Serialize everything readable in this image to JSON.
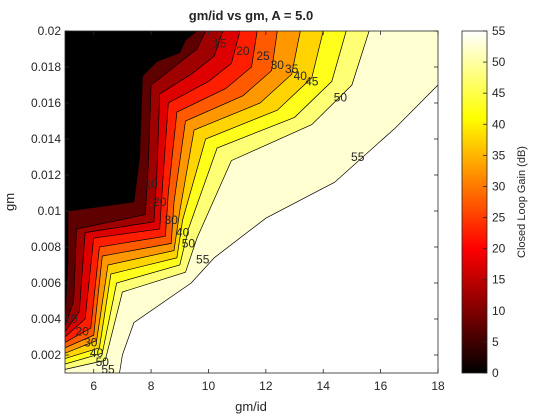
{
  "chart_data": {
    "type": "contourf",
    "title": "gm/id vs gm, A = 5.0",
    "xlabel": "gm/id",
    "ylabel": "gm",
    "colorbar_label": "Closed Loop Gain (dB)",
    "colormap": "hot",
    "xlim": [
      5,
      18
    ],
    "ylim": [
      0.001,
      0.02
    ],
    "clim": [
      0,
      55
    ],
    "x_ticks": [
      6,
      8,
      10,
      12,
      14,
      16,
      18
    ],
    "y_ticks": [
      0.002,
      0.004,
      0.006,
      0.008,
      0.01,
      0.012,
      0.014,
      0.016,
      0.018,
      0.02
    ],
    "y_tick_labels": [
      "0.002",
      "0.004",
      "0.006",
      "0.008",
      "0.01",
      "0.012",
      "0.014",
      "0.016",
      "0.018",
      "0.02"
    ],
    "colorbar_ticks": [
      0,
      5,
      10,
      15,
      20,
      25,
      30,
      35,
      40,
      45,
      50,
      55
    ],
    "levels": [
      5,
      10,
      15,
      20,
      25,
      30,
      35,
      40,
      45,
      50,
      55
    ],
    "contours": [
      {
        "level": 5,
        "points": [
          [
            5.0,
            0.004
          ],
          [
            5.1,
            0.007
          ],
          [
            5.1,
            0.01
          ],
          [
            7.4,
            0.0105
          ],
          [
            7.6,
            0.013
          ],
          [
            7.7,
            0.0175
          ],
          [
            8.2,
            0.0183
          ],
          [
            9.0,
            0.0188
          ],
          [
            9.2,
            0.0195
          ],
          [
            9.6,
            0.02
          ]
        ]
      },
      {
        "level": 10,
        "points": [
          [
            5.0,
            0.0036
          ],
          [
            5.3,
            0.005
          ],
          [
            5.4,
            0.009
          ],
          [
            7.8,
            0.0098
          ],
          [
            7.9,
            0.0125
          ],
          [
            8.0,
            0.017
          ],
          [
            8.8,
            0.018
          ],
          [
            9.6,
            0.019
          ],
          [
            9.9,
            0.02
          ]
        ]
      },
      {
        "level": 15,
        "points": [
          [
            5.0,
            0.0033
          ],
          [
            5.5,
            0.0044
          ],
          [
            5.7,
            0.0088
          ],
          [
            8.1,
            0.0094
          ],
          [
            8.2,
            0.012
          ],
          [
            8.3,
            0.0165
          ],
          [
            9.4,
            0.0176
          ],
          [
            10.2,
            0.0186
          ],
          [
            10.5,
            0.02
          ]
        ]
      },
      {
        "level": 20,
        "points": [
          [
            5.0,
            0.003
          ],
          [
            5.7,
            0.004
          ],
          [
            6.0,
            0.0085
          ],
          [
            8.3,
            0.009
          ],
          [
            8.4,
            0.0115
          ],
          [
            8.6,
            0.016
          ],
          [
            10.0,
            0.0172
          ],
          [
            10.8,
            0.0182
          ],
          [
            11.1,
            0.02
          ]
        ]
      },
      {
        "level": 25,
        "points": [
          [
            5.0,
            0.0027
          ],
          [
            5.9,
            0.0035
          ],
          [
            6.2,
            0.008
          ],
          [
            8.5,
            0.0086
          ],
          [
            8.6,
            0.011
          ],
          [
            8.9,
            0.0155
          ],
          [
            10.6,
            0.0168
          ],
          [
            11.5,
            0.018
          ],
          [
            11.7,
            0.02
          ]
        ]
      },
      {
        "level": 30,
        "points": [
          [
            5.0,
            0.0024
          ],
          [
            6.0,
            0.0031
          ],
          [
            6.3,
            0.0075
          ],
          [
            8.7,
            0.0082
          ],
          [
            8.8,
            0.0105
          ],
          [
            9.2,
            0.015
          ],
          [
            11.2,
            0.0164
          ],
          [
            12.2,
            0.0178
          ],
          [
            12.4,
            0.02
          ]
        ]
      },
      {
        "level": 35,
        "points": [
          [
            5.0,
            0.0021
          ],
          [
            6.1,
            0.0028
          ],
          [
            6.5,
            0.007
          ],
          [
            8.8,
            0.0078
          ],
          [
            9.0,
            0.01
          ],
          [
            9.5,
            0.0145
          ],
          [
            11.8,
            0.016
          ],
          [
            12.9,
            0.0176
          ],
          [
            13.2,
            0.02
          ]
        ]
      },
      {
        "level": 40,
        "points": [
          [
            5.0,
            0.0018
          ],
          [
            6.2,
            0.0024
          ],
          [
            6.6,
            0.0065
          ],
          [
            8.9,
            0.0074
          ],
          [
            9.1,
            0.0095
          ],
          [
            9.9,
            0.014
          ],
          [
            12.4,
            0.0156
          ],
          [
            13.6,
            0.0174
          ],
          [
            14.0,
            0.02
          ]
        ]
      },
      {
        "level": 45,
        "points": [
          [
            5.0,
            0.0015
          ],
          [
            6.3,
            0.0021
          ],
          [
            6.8,
            0.006
          ],
          [
            9.0,
            0.007
          ],
          [
            9.3,
            0.009
          ],
          [
            10.3,
            0.0135
          ],
          [
            13.0,
            0.0152
          ],
          [
            14.3,
            0.0172
          ],
          [
            14.8,
            0.02
          ]
        ]
      },
      {
        "level": 50,
        "points": [
          [
            5.0,
            0.0012
          ],
          [
            6.4,
            0.0017
          ],
          [
            7.0,
            0.0055
          ],
          [
            9.2,
            0.0066
          ],
          [
            9.6,
            0.0085
          ],
          [
            10.8,
            0.0128
          ],
          [
            13.6,
            0.0148
          ],
          [
            15.0,
            0.017
          ],
          [
            15.6,
            0.02
          ]
        ]
      },
      {
        "level": 55,
        "points": [
          [
            6.9,
            0.001
          ],
          [
            7.0,
            0.002
          ],
          [
            7.4,
            0.0038
          ],
          [
            9.4,
            0.006
          ],
          [
            10.2,
            0.0074
          ],
          [
            12.0,
            0.0096
          ],
          [
            14.4,
            0.0116
          ],
          [
            16.5,
            0.0146
          ],
          [
            18.0,
            0.017
          ]
        ]
      }
    ],
    "contour_labels": [
      {
        "level": 15,
        "at": [
          10.4,
          0.0193
        ],
        "text": "15"
      },
      {
        "level": 20,
        "at": [
          11.2,
          0.0189
        ],
        "text": "20"
      },
      {
        "level": 25,
        "at": [
          11.9,
          0.0186
        ],
        "text": "25"
      },
      {
        "level": 30,
        "at": [
          12.4,
          0.0181
        ],
        "text": "30"
      },
      {
        "level": 35,
        "at": [
          12.9,
          0.0179
        ],
        "text": "35"
      },
      {
        "level": 40,
        "at": [
          13.2,
          0.0175
        ],
        "text": "40"
      },
      {
        "level": 45,
        "at": [
          13.6,
          0.0172
        ],
        "text": "45"
      },
      {
        "level": 50,
        "at": [
          14.6,
          0.0163
        ],
        "text": "50"
      },
      {
        "level": 55,
        "at": [
          15.2,
          0.013
        ],
        "text": "55"
      },
      {
        "level": 10,
        "at": [
          8.0,
          0.0115
        ],
        "text": "10"
      },
      {
        "level": 20,
        "at": [
          8.3,
          0.0105
        ],
        "text": "20"
      },
      {
        "level": 30,
        "at": [
          8.7,
          0.0095
        ],
        "text": "30"
      },
      {
        "level": 40,
        "at": [
          9.1,
          0.0088
        ],
        "text": "40"
      },
      {
        "level": 50,
        "at": [
          9.3,
          0.0082
        ],
        "text": "50"
      },
      {
        "level": 55,
        "at": [
          9.8,
          0.0073
        ],
        "text": "55"
      },
      {
        "level": 10,
        "at": [
          5.2,
          0.004
        ],
        "text": "10"
      },
      {
        "level": 20,
        "at": [
          5.6,
          0.0033
        ],
        "text": "20"
      },
      {
        "level": 30,
        "at": [
          5.9,
          0.0027
        ],
        "text": "30"
      },
      {
        "level": 40,
        "at": [
          6.1,
          0.0021
        ],
        "text": "40"
      },
      {
        "level": 50,
        "at": [
          6.3,
          0.0016
        ],
        "text": "50"
      },
      {
        "level": 55,
        "at": [
          6.5,
          0.0012
        ],
        "text": "55"
      }
    ]
  }
}
